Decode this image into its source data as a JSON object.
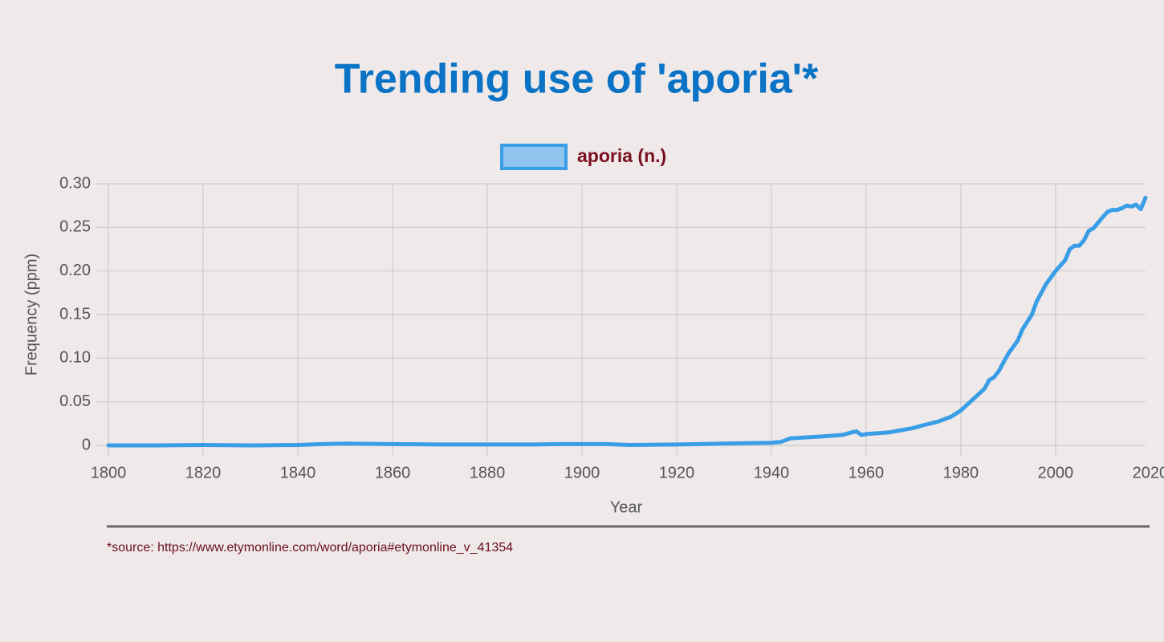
{
  "chart_data": {
    "type": "line",
    "title": "Trending use of 'aporia'*",
    "xlabel": "Year",
    "ylabel": "Frequency (ppm)",
    "source": "*source: https://www.etymonline.com/word/aporia#etymonline_v_41354",
    "x": [
      1800,
      1810,
      1820,
      1830,
      1840,
      1845,
      1850,
      1860,
      1870,
      1880,
      1890,
      1895,
      1900,
      1905,
      1910,
      1920,
      1925,
      1930,
      1935,
      1940,
      1942,
      1944,
      1950,
      1955,
      1957,
      1958,
      1959,
      1960,
      1965,
      1970,
      1972,
      1975,
      1978,
      1980,
      1982,
      1984,
      1985,
      1986,
      1987,
      1988,
      1990,
      1992,
      1993,
      1995,
      1996,
      1998,
      2000,
      2002,
      2003,
      2004,
      2005,
      2006,
      2007,
      2008,
      2010,
      2011,
      2012,
      2013,
      2014,
      2015,
      2016,
      2017,
      2018,
      2019
    ],
    "series": [
      {
        "name": "aporia (n.)",
        "color": "#3a9ee6",
        "values": [
          0,
          0,
          0.0005,
          0,
          0.0005,
          0.0015,
          0.002,
          0.0015,
          0.001,
          0.001,
          0.001,
          0.0015,
          0.0015,
          0.0015,
          0.0005,
          0.001,
          0.0015,
          0.002,
          0.0025,
          0.003,
          0.004,
          0.008,
          0.01,
          0.012,
          0.015,
          0.016,
          0.012,
          0.013,
          0.015,
          0.02,
          0.023,
          0.027,
          0.033,
          0.04,
          0.05,
          0.06,
          0.065,
          0.075,
          0.078,
          0.085,
          0.105,
          0.12,
          0.133,
          0.15,
          0.165,
          0.185,
          0.2,
          0.212,
          0.225,
          0.229,
          0.229,
          0.235,
          0.246,
          0.249,
          0.262,
          0.268,
          0.27,
          0.27,
          0.272,
          0.275,
          0.274,
          0.276,
          0.271,
          0.284
        ]
      }
    ],
    "xlim": [
      1800,
      2019
    ],
    "ylim": [
      0,
      0.3
    ],
    "xticks": [
      1800,
      1820,
      1840,
      1860,
      1880,
      1900,
      1920,
      1940,
      1960,
      1980,
      2000,
      2020
    ],
    "yticks": [
      0,
      0.05,
      {
        "value": 0.1,
        "label": "0.10"
      },
      0.15,
      {
        "value": 0.2,
        "label": "0.20"
      },
      0.25,
      {
        "value": 0.3,
        "label": "0.30"
      }
    ],
    "grid": true
  }
}
